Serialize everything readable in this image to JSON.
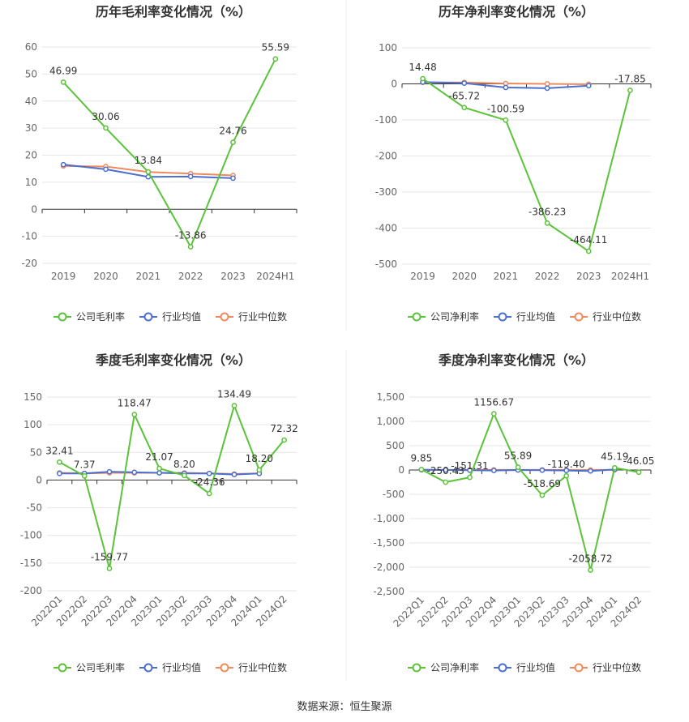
{
  "source": "数据来源：恒生聚源",
  "colors": {
    "company": "#5ac33a",
    "avg": "#4a6fd0",
    "median": "#ef8a5c"
  },
  "chart_data": [
    {
      "id": "annual-gross",
      "type": "line",
      "title": "历年毛利率变化情况（%）",
      "categories": [
        "2019",
        "2020",
        "2021",
        "2022",
        "2023",
        "2024H1"
      ],
      "ylim": [
        -20,
        60
      ],
      "yticks": [
        -20,
        -10,
        0,
        10,
        20,
        30,
        40,
        50,
        60
      ],
      "ytick_labels": [
        "-20",
        "-10",
        "0",
        "10",
        "20",
        "30",
        "40",
        "50",
        "60"
      ],
      "grid": true,
      "legend": "bottom",
      "series": [
        {
          "name": "公司毛利率",
          "color": "#5ac33a",
          "values": [
            46.99,
            30.06,
            13.84,
            -13.86,
            24.76,
            55.59
          ],
          "labels": [
            "46.99",
            "30.06",
            "13.84",
            "-13.86",
            "24.76",
            "55.59"
          ]
        },
        {
          "name": "行业均值",
          "color": "#4a6fd0",
          "values": [
            16.5,
            14.8,
            12.0,
            12.1,
            11.5,
            null
          ]
        },
        {
          "name": "行业中位数",
          "color": "#ef8a5c",
          "values": [
            16.0,
            15.8,
            13.8,
            13.2,
            12.5,
            null
          ]
        }
      ]
    },
    {
      "id": "annual-net",
      "type": "line",
      "title": "历年净利率变化情况（%）",
      "categories": [
        "2019",
        "2020",
        "2021",
        "2022",
        "2023",
        "2024H1"
      ],
      "ylim": [
        -500,
        100
      ],
      "yticks": [
        -500,
        -400,
        -300,
        -200,
        -100,
        0,
        100
      ],
      "ytick_labels": [
        "-500",
        "-400",
        "-300",
        "-200",
        "-100",
        "0",
        "100"
      ],
      "grid": true,
      "legend": "bottom",
      "series": [
        {
          "name": "公司净利率",
          "color": "#5ac33a",
          "values": [
            14.48,
            -65.72,
            -100.59,
            -386.23,
            -464.11,
            -17.85
          ],
          "labels": [
            "14.48",
            "-65.72",
            "-100.59",
            "-386.23",
            "-464.11",
            "-17.85"
          ]
        },
        {
          "name": "行业均值",
          "color": "#4a6fd0",
          "values": [
            5,
            2,
            -10,
            -12,
            -5,
            null
          ]
        },
        {
          "name": "行业中位数",
          "color": "#ef8a5c",
          "values": [
            4,
            4,
            1,
            0,
            -1,
            null
          ]
        }
      ]
    },
    {
      "id": "quarterly-gross",
      "type": "line",
      "title": "季度毛利率变化情况（%）",
      "categories": [
        "2022Q1",
        "2022Q2",
        "2022Q3",
        "2022Q4",
        "2023Q1",
        "2023Q2",
        "2023Q3",
        "2023Q4",
        "2024Q1",
        "2024Q2"
      ],
      "ylim": [
        -200,
        150
      ],
      "yticks": [
        -200,
        -150,
        -100,
        -50,
        0,
        50,
        100,
        150
      ],
      "ytick_labels": [
        "-200",
        "-150",
        "-100",
        "-50",
        "0",
        "50",
        "100",
        "150"
      ],
      "grid": true,
      "legend": "bottom",
      "series": [
        {
          "name": "公司毛利率",
          "color": "#5ac33a",
          "values": [
            32.41,
            7.37,
            -159.77,
            118.47,
            21.07,
            8.2,
            -24.36,
            134.49,
            18.2,
            72.32
          ],
          "labels": [
            "32.41",
            "7.37",
            "-159.77",
            "118.47",
            "21.07",
            "8.20",
            "-24.36",
            "134.49",
            "18.20",
            "72.32"
          ]
        },
        {
          "name": "行业均值",
          "color": "#4a6fd0",
          "values": [
            12,
            12,
            15,
            14,
            13,
            12,
            12,
            10,
            12,
            null
          ]
        },
        {
          "name": "行业中位数",
          "color": "#ef8a5c",
          "values": [
            13,
            12,
            13,
            13,
            13,
            13,
            12,
            11,
            12,
            null
          ]
        }
      ]
    },
    {
      "id": "quarterly-net",
      "type": "line",
      "title": "季度净利率变化情况（%）",
      "categories": [
        "2022Q1",
        "2022Q2",
        "2022Q3",
        "2022Q4",
        "2023Q1",
        "2023Q2",
        "2023Q3",
        "2023Q4",
        "2024Q1",
        "2024Q2"
      ],
      "ylim": [
        -2500,
        1500
      ],
      "yticks": [
        -2500,
        -2000,
        -1500,
        -1000,
        -500,
        0,
        500,
        1000,
        1500
      ],
      "ytick_labels": [
        "-2,500",
        "-2,000",
        "-1,500",
        "-1,000",
        "-500",
        "0",
        "500",
        "1,000",
        "1,500"
      ],
      "grid": true,
      "legend": "bottom",
      "series": [
        {
          "name": "公司净利率",
          "color": "#5ac33a",
          "values": [
            9.85,
            -250.43,
            -151.31,
            1156.67,
            55.89,
            -518.69,
            -119.4,
            -2058.72,
            45.19,
            -46.05
          ],
          "labels": [
            "9.85",
            "-250.43",
            "-151.31",
            "1156.67",
            "55.89",
            "-518.69",
            "-119.40",
            "-2058.72",
            "45.19",
            "-46.05"
          ]
        },
        {
          "name": "行业均值",
          "color": "#4a6fd0",
          "values": [
            5,
            0,
            -5,
            -10,
            0,
            -5,
            -10,
            -20,
            10,
            null
          ]
        },
        {
          "name": "行业中位数",
          "color": "#ef8a5c",
          "values": [
            5,
            3,
            2,
            3,
            3,
            2,
            2,
            0,
            5,
            null
          ]
        }
      ]
    }
  ]
}
